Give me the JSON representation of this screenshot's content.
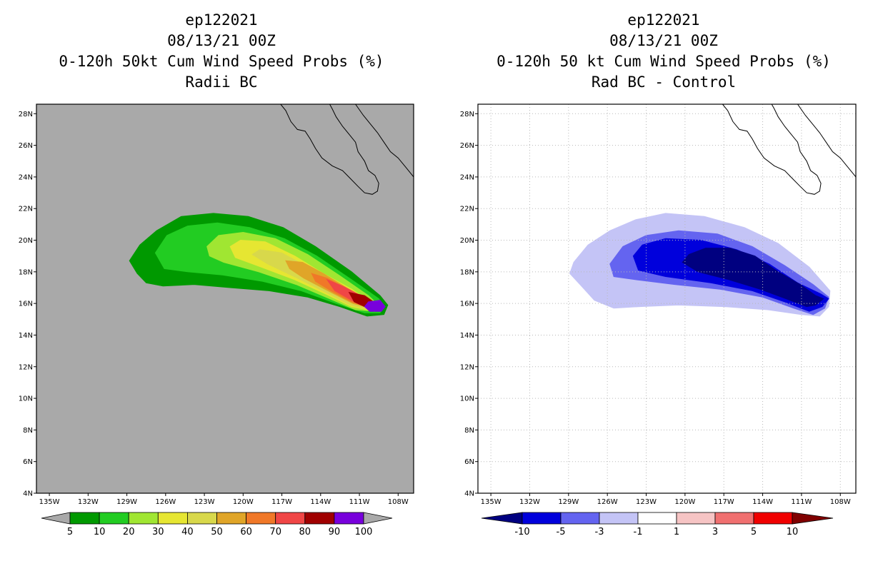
{
  "chart_data": [
    {
      "type": "heatmap",
      "title_lines": [
        "ep122021",
        "08/13/21 00Z",
        "0-120h 50kt Cum Wind Speed Probs (%)",
        "Radii BC"
      ],
      "x_ticks": [
        "135W",
        "132W",
        "129W",
        "126W",
        "123W",
        "120W",
        "117W",
        "114W",
        "111W",
        "108W"
      ],
      "x_tick_values": [
        -135,
        -132,
        -129,
        -126,
        -123,
        -120,
        -117,
        -114,
        -111,
        -108
      ],
      "y_ticks": [
        "4N",
        "6N",
        "8N",
        "10N",
        "12N",
        "14N",
        "16N",
        "18N",
        "20N",
        "22N",
        "24N",
        "26N",
        "28N"
      ],
      "y_tick_values": [
        4,
        6,
        8,
        10,
        12,
        14,
        16,
        18,
        20,
        22,
        24,
        26,
        28
      ],
      "xlim": [
        -136.0,
        -106.8
      ],
      "ylim": [
        4,
        28.6
      ],
      "grid": false,
      "background": "#a9a9a9",
      "colorbar": {
        "labels": [
          "5",
          "10",
          "20",
          "30",
          "40",
          "50",
          "60",
          "70",
          "80",
          "90",
          "100"
        ],
        "colors": [
          "#009900",
          "#22cc22",
          "#a0e632",
          "#e6e632",
          "#d8d84b",
          "#e0a528",
          "#f07828",
          "#f04646",
          "#a00000",
          "#7800dc"
        ],
        "under_color": "#a9a9a9",
        "over_color": "#a9a9a9"
      },
      "levels": [
        {
          "threshold": 5,
          "color": "#009900",
          "outline": [
            [
              -128.8,
              18.7
            ],
            [
              -128,
              19.7
            ],
            [
              -126.7,
              20.6
            ],
            [
              -124.8,
              21.5
            ],
            [
              -122.3,
              21.7
            ],
            [
              -119.6,
              21.5
            ],
            [
              -116.9,
              20.8
            ],
            [
              -114.4,
              19.6
            ],
            [
              -111.6,
              18
            ],
            [
              -109.4,
              16.5
            ],
            [
              -108.8,
              15.9
            ],
            [
              -109.1,
              15.3
            ],
            [
              -110.4,
              15.2
            ],
            [
              -112.5,
              15.8
            ],
            [
              -115,
              16.4
            ],
            [
              -118,
              16.8
            ],
            [
              -121,
              17
            ],
            [
              -123.8,
              17.2
            ],
            [
              -126.2,
              17.1
            ],
            [
              -127.5,
              17.3
            ],
            [
              -128.2,
              17.9
            ]
          ]
        },
        {
          "threshold": 10,
          "color": "#22cc22",
          "outline": [
            [
              -126.8,
              19.2
            ],
            [
              -125.9,
              20.3
            ],
            [
              -124.3,
              20.9
            ],
            [
              -122,
              21.1
            ],
            [
              -119.5,
              20.8
            ],
            [
              -116.8,
              20.1
            ],
            [
              -114.3,
              19
            ],
            [
              -111.6,
              17.5
            ],
            [
              -109.5,
              16.3
            ],
            [
              -109.1,
              15.8
            ],
            [
              -109.4,
              15.4
            ],
            [
              -110.6,
              15.4
            ],
            [
              -112.8,
              16
            ],
            [
              -115.5,
              16.8
            ],
            [
              -118.5,
              17.4
            ],
            [
              -121.6,
              17.8
            ],
            [
              -124.3,
              18
            ],
            [
              -126.1,
              18.2
            ]
          ]
        },
        {
          "threshold": 20,
          "color": "#a0e632",
          "outline": [
            [
              -122.8,
              19.6
            ],
            [
              -121.9,
              20.3
            ],
            [
              -120,
              20.5
            ],
            [
              -117.5,
              20.1
            ],
            [
              -115,
              19.1
            ],
            [
              -112.6,
              17.8
            ],
            [
              -110.3,
              16.5
            ],
            [
              -109.4,
              15.8
            ],
            [
              -109.8,
              15.5
            ],
            [
              -111.3,
              15.6
            ],
            [
              -113.3,
              16.3
            ],
            [
              -115.9,
              17.2
            ],
            [
              -118.8,
              18
            ],
            [
              -121.5,
              18.6
            ],
            [
              -122.6,
              19
            ]
          ]
        },
        {
          "threshold": 30,
          "color": "#e6e632",
          "outline": [
            [
              -121,
              19.6
            ],
            [
              -120.2,
              20
            ],
            [
              -118.3,
              19.9
            ],
            [
              -116,
              19
            ],
            [
              -113.8,
              17.9
            ],
            [
              -111.6,
              16.9
            ],
            [
              -110,
              16
            ],
            [
              -109.6,
              15.7
            ],
            [
              -110.1,
              15.55
            ],
            [
              -111.6,
              15.8
            ],
            [
              -113.6,
              16.6
            ],
            [
              -116,
              17.5
            ],
            [
              -118.6,
              18.3
            ],
            [
              -120.6,
              18.9
            ]
          ]
        },
        {
          "threshold": 40,
          "color": "#d8d84b",
          "outline": [
            [
              -119.3,
              19.1
            ],
            [
              -118.7,
              19.4
            ],
            [
              -117,
              19.2
            ],
            [
              -115.2,
              18.4
            ],
            [
              -113.1,
              17.4
            ],
            [
              -111.3,
              16.6
            ],
            [
              -110,
              15.9
            ],
            [
              -109.7,
              15.7
            ],
            [
              -110.2,
              15.6
            ],
            [
              -111.7,
              15.9
            ],
            [
              -113.6,
              16.7
            ],
            [
              -115.8,
              17.6
            ],
            [
              -118.1,
              18.5
            ]
          ]
        },
        {
          "threshold": 50,
          "color": "#e0a528",
          "outline": [
            [
              -116.7,
              18.7
            ],
            [
              -115.4,
              18.6
            ],
            [
              -113.8,
              17.9
            ],
            [
              -112,
              17
            ],
            [
              -110.5,
              16.3
            ],
            [
              -109.8,
              15.8
            ],
            [
              -110.2,
              15.7
            ],
            [
              -111.5,
              16
            ],
            [
              -113.2,
              16.7
            ],
            [
              -115.3,
              17.6
            ],
            [
              -116.4,
              18.2
            ]
          ]
        },
        {
          "threshold": 60,
          "color": "#f07828",
          "outline": [
            [
              -114.7,
              17.9
            ],
            [
              -113.5,
              17.6
            ],
            [
              -111.9,
              16.9
            ],
            [
              -110.5,
              16.3
            ],
            [
              -109.9,
              15.85
            ],
            [
              -110.3,
              15.75
            ],
            [
              -111.6,
              16.1
            ],
            [
              -113.2,
              16.8
            ],
            [
              -114.4,
              17.4
            ]
          ]
        },
        {
          "threshold": 70,
          "color": "#f04646",
          "outline": [
            [
              -113.5,
              17.5
            ],
            [
              -112.3,
              17.1
            ],
            [
              -110.9,
              16.5
            ],
            [
              -109.9,
              15.9
            ],
            [
              -110.4,
              15.8
            ],
            [
              -111.6,
              16.2
            ],
            [
              -112.9,
              16.8
            ]
          ]
        },
        {
          "threshold": 80,
          "color": "#a00000",
          "outline": [
            [
              -111.8,
              16.7
            ],
            [
              -110.6,
              16.5
            ],
            [
              -109.9,
              16.1
            ],
            [
              -109.8,
              15.8
            ],
            [
              -110.6,
              15.8
            ],
            [
              -111.4,
              16.1
            ]
          ]
        },
        {
          "threshold": 90,
          "color": "#7800dc",
          "outline": [
            [
              -110.3,
              16.1
            ],
            [
              -109.4,
              16.2
            ],
            [
              -109,
              15.8
            ],
            [
              -109.3,
              15.5
            ],
            [
              -110.2,
              15.5
            ],
            [
              -110.6,
              15.8
            ]
          ]
        }
      ]
    },
    {
      "type": "heatmap",
      "title_lines": [
        "ep122021",
        "08/13/21 00Z",
        "0-120h 50 kt Cum Wind Speed Probs (%)",
        "Rad BC - Control"
      ],
      "x_ticks": [
        "135W",
        "132W",
        "129W",
        "126W",
        "123W",
        "120W",
        "117W",
        "114W",
        "111W",
        "108W"
      ],
      "x_tick_values": [
        -135,
        -132,
        -129,
        -126,
        -123,
        -120,
        -117,
        -114,
        -111,
        -108
      ],
      "y_ticks": [
        "4N",
        "6N",
        "8N",
        "10N",
        "12N",
        "14N",
        "16N",
        "18N",
        "20N",
        "22N",
        "24N",
        "26N",
        "28N"
      ],
      "y_tick_values": [
        4,
        6,
        8,
        10,
        12,
        14,
        16,
        18,
        20,
        22,
        24,
        26,
        28
      ],
      "xlim": [
        -136.0,
        -106.8
      ],
      "ylim": [
        4,
        28.6
      ],
      "grid": true,
      "background": "#ffffff",
      "colorbar": {
        "labels": [
          "-10",
          "-5",
          "-3",
          "-1",
          "1",
          "3",
          "5",
          "10"
        ],
        "colors": [
          "#0000dc",
          "#6464f0",
          "#c4c4f6",
          "#ffffff",
          "#f6c4c4",
          "#f07070",
          "#f00000"
        ],
        "under_color": "#000080",
        "over_color": "#800000"
      },
      "levels": [
        {
          "threshold": -1,
          "color": "#c4c4f6",
          "outline": [
            [
              -128.6,
              18.6
            ],
            [
              -127.5,
              19.7
            ],
            [
              -125.8,
              20.6
            ],
            [
              -123.8,
              21.3
            ],
            [
              -121.5,
              21.7
            ],
            [
              -118.5,
              21.5
            ],
            [
              -115.4,
              20.8
            ],
            [
              -112.8,
              19.8
            ],
            [
              -110.4,
              18.3
            ],
            [
              -108.8,
              16.8
            ],
            [
              -108.9,
              15.8
            ],
            [
              -109.6,
              15.2
            ],
            [
              -111,
              15.3
            ],
            [
              -113.6,
              15.6
            ],
            [
              -117,
              15.8
            ],
            [
              -120.5,
              15.9
            ],
            [
              -123.5,
              15.8
            ],
            [
              -125.5,
              15.7
            ],
            [
              -127,
              16.2
            ],
            [
              -128,
              17.1
            ],
            [
              -128.9,
              17.9
            ]
          ]
        },
        {
          "threshold": -3,
          "color": "#6464f0",
          "outline": [
            [
              -125.8,
              18.5
            ],
            [
              -124.8,
              19.6
            ],
            [
              -123,
              20.3
            ],
            [
              -120.5,
              20.6
            ],
            [
              -117.5,
              20.4
            ],
            [
              -114.8,
              19.6
            ],
            [
              -112.3,
              18.4
            ],
            [
              -110.1,
              17.2
            ],
            [
              -108.9,
              16.4
            ],
            [
              -109.2,
              15.7
            ],
            [
              -110.1,
              15.3
            ],
            [
              -111.6,
              15.7
            ],
            [
              -114,
              16.4
            ],
            [
              -117.3,
              16.9
            ],
            [
              -120.8,
              17.2
            ],
            [
              -123.8,
              17.5
            ],
            [
              -125.5,
              17.7
            ]
          ]
        },
        {
          "threshold": -5,
          "color": "#0000dc",
          "outline": [
            [
              -124,
              19
            ],
            [
              -123.3,
              19.7
            ],
            [
              -121.5,
              20.1
            ],
            [
              -118.8,
              20
            ],
            [
              -116,
              19.4
            ],
            [
              -113.5,
              18.5
            ],
            [
              -111.3,
              17.3
            ],
            [
              -109.5,
              16.6
            ],
            [
              -108.9,
              16.3
            ],
            [
              -109.4,
              15.8
            ],
            [
              -110.4,
              15.5
            ],
            [
              -112.3,
              16.1
            ],
            [
              -114.8,
              16.8
            ],
            [
              -118,
              17.3
            ],
            [
              -121.5,
              17.7
            ],
            [
              -123.6,
              18.1
            ]
          ]
        },
        {
          "threshold": -10,
          "color": "#000080",
          "outline": [
            [
              -120.2,
              18.6
            ],
            [
              -119.7,
              19.1
            ],
            [
              -118.4,
              19.5
            ],
            [
              -116.5,
              19.5
            ],
            [
              -114.6,
              19
            ],
            [
              -112.8,
              18
            ],
            [
              -111.1,
              17.2
            ],
            [
              -109.9,
              16.5
            ],
            [
              -109.3,
              16.3
            ],
            [
              -109.9,
              15.9
            ],
            [
              -110.6,
              15.8
            ],
            [
              -112.2,
              16.3
            ],
            [
              -114.2,
              16.9
            ],
            [
              -116.6,
              17.5
            ],
            [
              -119,
              18
            ]
          ]
        }
      ]
    }
  ]
}
